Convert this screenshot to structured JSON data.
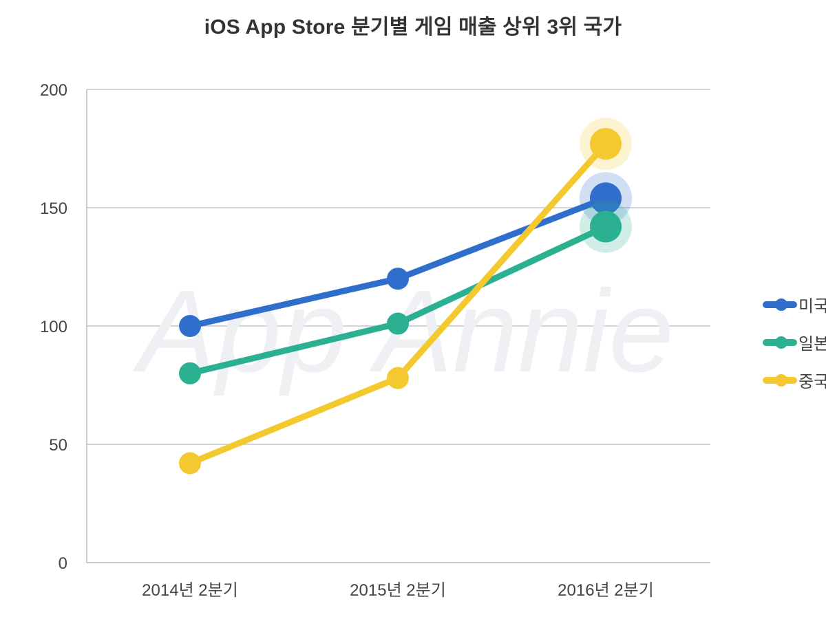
{
  "title": "iOS App Store 분기별 게임 매출 상위 3위 국가",
  "watermark": "App Annie",
  "colors": {
    "us": "#2F6FCB",
    "japan": "#2BB191",
    "china": "#F3C92F",
    "grid": "#BBBBBB",
    "axis": "#AAAAAA"
  },
  "legend": {
    "items": [
      {
        "label": "미국",
        "color": "#2F6FCB"
      },
      {
        "label": "일본",
        "color": "#2BB191"
      },
      {
        "label": "중국",
        "color": "#F3C92F"
      }
    ]
  },
  "axes": {
    "y_ticks": [
      "0",
      "50",
      "100",
      "150",
      "200"
    ],
    "x_ticks": [
      "2014년 2분기",
      "2015년 2분기",
      "2016년 2분기"
    ]
  },
  "chart_data": {
    "type": "line",
    "title": "iOS App Store 분기별 게임 매출 상위 3위 국가",
    "categories": [
      "2014년 2분기",
      "2015년 2분기",
      "2016년 2분기"
    ],
    "series": [
      {
        "name": "미국",
        "color": "#2F6FCB",
        "values": [
          100,
          120,
          154
        ]
      },
      {
        "name": "일본",
        "color": "#2BB191",
        "values": [
          80,
          101,
          142
        ]
      },
      {
        "name": "중국",
        "color": "#F3C92F",
        "values": [
          42,
          78,
          177
        ]
      }
    ],
    "xlabel": "",
    "ylabel": "",
    "ylim": [
      0,
      200
    ],
    "yticks": [
      0,
      50,
      100,
      150,
      200
    ],
    "grid": true,
    "legend_position": "right",
    "annotations": [
      "Last data point of each series highlighted with halo"
    ]
  }
}
